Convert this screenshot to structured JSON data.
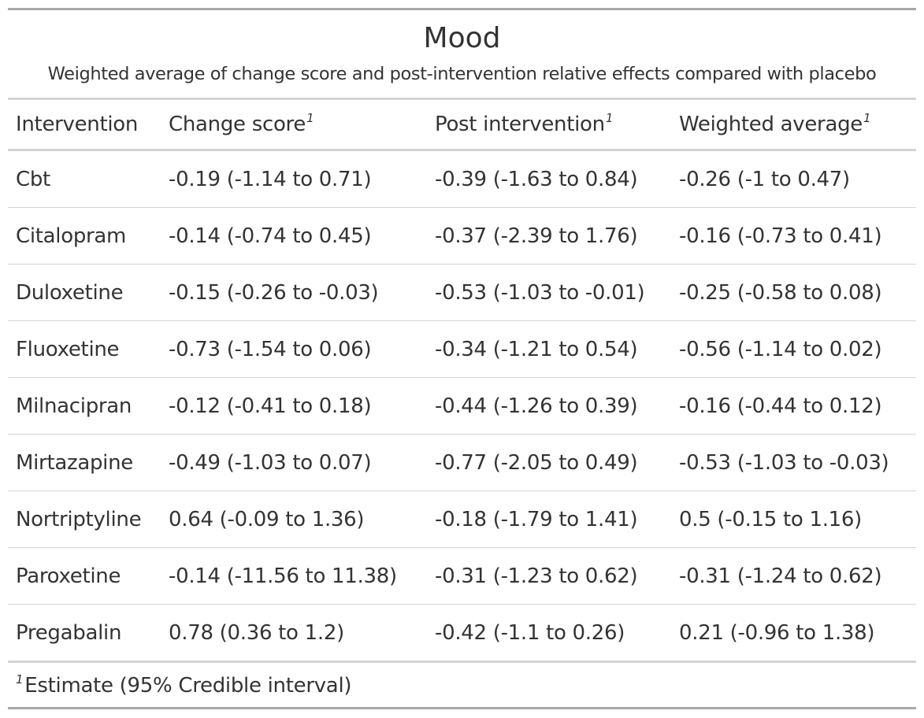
{
  "title": "Mood",
  "subtitle": "Weighted average of change score and post-intervention relative effects compared with placebo",
  "table": {
    "columns": [
      {
        "label": "Intervention",
        "footnote_mark": ""
      },
      {
        "label": "Change score",
        "footnote_mark": "1"
      },
      {
        "label": "Post intervention",
        "footnote_mark": "1"
      },
      {
        "label": "Weighted average",
        "footnote_mark": "1"
      }
    ],
    "rows": [
      {
        "intervention": "Cbt",
        "change_score": "-0.19 (-1.14 to 0.71)",
        "post_intervention": "-0.39 (-1.63 to 0.84)",
        "weighted_average": "-0.26 (-1 to 0.47)"
      },
      {
        "intervention": "Citalopram",
        "change_score": "-0.14 (-0.74 to 0.45)",
        "post_intervention": "-0.37 (-2.39 to 1.76)",
        "weighted_average": "-0.16 (-0.73 to 0.41)"
      },
      {
        "intervention": "Duloxetine",
        "change_score": "-0.15 (-0.26 to -0.03)",
        "post_intervention": "-0.53 (-1.03 to -0.01)",
        "weighted_average": "-0.25 (-0.58 to 0.08)"
      },
      {
        "intervention": "Fluoxetine",
        "change_score": "-0.73 (-1.54 to 0.06)",
        "post_intervention": "-0.34 (-1.21 to 0.54)",
        "weighted_average": "-0.56 (-1.14 to 0.02)"
      },
      {
        "intervention": "Milnacipran",
        "change_score": "-0.12 (-0.41 to 0.18)",
        "post_intervention": "-0.44 (-1.26 to 0.39)",
        "weighted_average": "-0.16 (-0.44 to 0.12)"
      },
      {
        "intervention": "Mirtazapine",
        "change_score": "-0.49 (-1.03 to 0.07)",
        "post_intervention": "-0.77 (-2.05 to 0.49)",
        "weighted_average": "-0.53 (-1.03 to -0.03)"
      },
      {
        "intervention": "Nortriptyline",
        "change_score": "0.64 (-0.09 to 1.36)",
        "post_intervention": "-0.18 (-1.79 to 1.41)",
        "weighted_average": "0.5 (-0.15 to 1.16)"
      },
      {
        "intervention": "Paroxetine",
        "change_score": "-0.14 (-11.56 to 11.38)",
        "post_intervention": "-0.31 (-1.23 to 0.62)",
        "weighted_average": "-0.31 (-1.24 to 0.62)"
      },
      {
        "intervention": "Pregabalin",
        "change_score": "0.78 (0.36 to 1.2)",
        "post_intervention": "-0.42 (-1.1 to 0.26)",
        "weighted_average": "0.21 (-0.96 to 1.38)"
      }
    ]
  },
  "footnote": {
    "mark": "1",
    "text": "Estimate (95% Credible interval)"
  },
  "colors": {
    "text": "#333333",
    "outer_rule": "#a8a8a8",
    "inner_rule": "#d3d3d3",
    "background": "#ffffff"
  }
}
